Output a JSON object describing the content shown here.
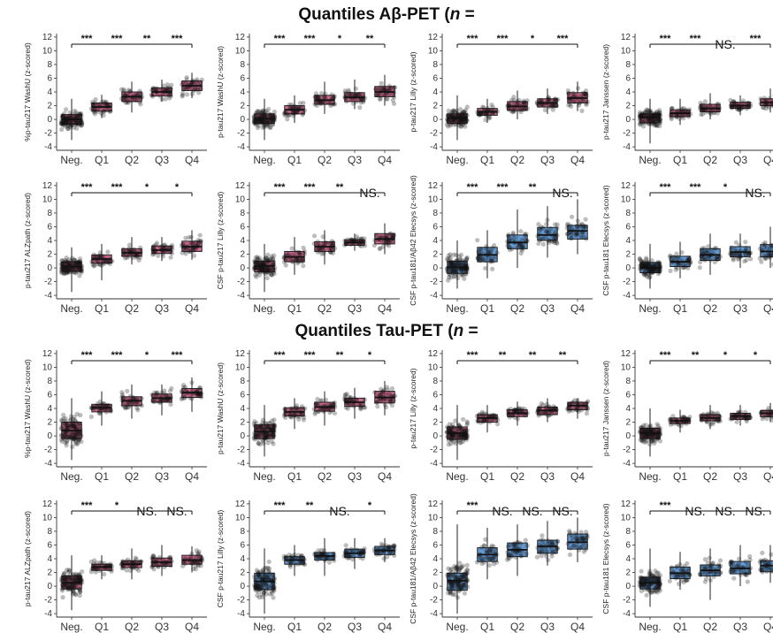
{
  "sections": [
    {
      "id": "amyloid",
      "title_prefix": "Quantiles Aβ-PET (",
      "title_n": "n",
      "title_suffix": " ="
    },
    {
      "id": "tau",
      "title_prefix": "Quantiles Tau-PET (",
      "title_n": "n",
      "title_suffix": " ="
    }
  ],
  "chart_data": [
    {
      "type": "box",
      "section": "amyloid",
      "ylabel": "%p-tau217 WashU (z-scored)",
      "categories": [
        "Neg.",
        "Q1",
        "Q2",
        "Q3",
        "Q4"
      ],
      "yticks": [
        -4,
        -2,
        0,
        2,
        4,
        6,
        8,
        10,
        12
      ],
      "ylim": [
        -4.5,
        12.5
      ],
      "fill": "#c0507a",
      "medians": [
        0.0,
        1.8,
        3.3,
        4.0,
        4.9
      ],
      "q1": [
        -0.7,
        1.2,
        2.6,
        3.4,
        4.2
      ],
      "q3": [
        0.7,
        2.4,
        4.0,
        4.6,
        5.6
      ],
      "whisker_lo": [
        -3.0,
        0.2,
        1.0,
        2.6,
        3.1
      ],
      "whisker_hi": [
        3.0,
        3.6,
        5.5,
        5.8,
        6.8
      ],
      "significance": [
        "***",
        "***",
        "**",
        "***"
      ]
    },
    {
      "type": "box",
      "section": "amyloid",
      "ylabel": "p-tau217 WashU (z-scored)",
      "categories": [
        "Neg.",
        "Q1",
        "Q2",
        "Q3",
        "Q4"
      ],
      "yticks": [
        -4,
        -2,
        0,
        2,
        4,
        6,
        8,
        10,
        12
      ],
      "ylim": [
        -4.5,
        12.5
      ],
      "fill": "#c0507a",
      "medians": [
        0.1,
        1.4,
        2.8,
        3.2,
        4.0
      ],
      "q1": [
        -0.6,
        0.8,
        2.2,
        2.6,
        3.3
      ],
      "q3": [
        0.8,
        2.0,
        3.5,
        3.9,
        4.8
      ],
      "whisker_lo": [
        -3.0,
        -0.5,
        0.8,
        1.5,
        2.0
      ],
      "whisker_hi": [
        3.0,
        3.5,
        5.5,
        5.8,
        6.5
      ],
      "significance": [
        "***",
        "***",
        "*",
        "**"
      ]
    },
    {
      "type": "box",
      "section": "amyloid",
      "ylabel": "p-tau217 Lilly (z-scored)",
      "categories": [
        "Neg.",
        "Q1",
        "Q2",
        "Q3",
        "Q4"
      ],
      "yticks": [
        -4,
        -2,
        0,
        2,
        4,
        6,
        8,
        10,
        12
      ],
      "ylim": [
        -4.5,
        12.5
      ],
      "fill": "#c0507a",
      "medians": [
        0.2,
        1.1,
        1.9,
        2.4,
        3.1
      ],
      "q1": [
        -0.6,
        0.6,
        1.3,
        1.8,
        2.4
      ],
      "q3": [
        0.8,
        1.6,
        2.6,
        3.0,
        3.9
      ],
      "whisker_lo": [
        -3.0,
        -0.5,
        0.0,
        0.8,
        1.2
      ],
      "whisker_hi": [
        3.5,
        3.0,
        4.2,
        4.5,
        5.5
      ],
      "significance": [
        "***",
        "***",
        "*",
        "***"
      ]
    },
    {
      "type": "box",
      "section": "amyloid",
      "ylabel": "p-tau217 Janssen (z-scored)",
      "categories": [
        "Neg.",
        "Q1",
        "Q2",
        "Q3",
        "Q4"
      ],
      "yticks": [
        -4,
        -2,
        0,
        2,
        4,
        6,
        8,
        10,
        12
      ],
      "ylim": [
        -4.5,
        12.5
      ],
      "fill": "#c0507a",
      "medians": [
        0.3,
        0.9,
        1.6,
        2.0,
        2.5
      ],
      "q1": [
        -0.5,
        0.4,
        1.1,
        1.6,
        2.0
      ],
      "q3": [
        0.8,
        1.4,
        2.2,
        2.5,
        3.0
      ],
      "whisker_lo": [
        -3.5,
        -0.8,
        0.0,
        0.6,
        1.0
      ],
      "whisker_hi": [
        3.0,
        3.0,
        3.8,
        3.5,
        4.5
      ],
      "significance": [
        "***",
        "***",
        "NS.",
        "***"
      ]
    },
    {
      "type": "box",
      "section": "amyloid",
      "ylabel": "p-tau217 ALZpath (z-scored)",
      "categories": [
        "Neg.",
        "Q1",
        "Q2",
        "Q3",
        "Q4"
      ],
      "yticks": [
        -4,
        -2,
        0,
        2,
        4,
        6,
        8,
        10,
        12
      ],
      "ylim": [
        -4.5,
        12.5
      ],
      "fill": "#c0507a",
      "medians": [
        0.2,
        1.3,
        2.2,
        2.6,
        3.1
      ],
      "q1": [
        -0.5,
        0.7,
        1.7,
        2.1,
        2.4
      ],
      "q3": [
        0.9,
        1.9,
        2.8,
        3.2,
        3.9
      ],
      "whisker_lo": [
        -3.5,
        -1.8,
        0.5,
        1.0,
        1.2
      ],
      "whisker_hi": [
        3.0,
        3.5,
        4.5,
        4.5,
        5.5
      ],
      "significance": [
        "***",
        "***",
        "*",
        "*"
      ]
    },
    {
      "type": "box",
      "section": "amyloid",
      "ylabel": "CSF p-tau217 Lilly (z-scored)",
      "categories": [
        "Neg.",
        "Q1",
        "Q2",
        "Q3",
        "Q4"
      ],
      "yticks": [
        -4,
        -2,
        0,
        2,
        4,
        6,
        8,
        10,
        12
      ],
      "ylim": [
        -4.5,
        12.5
      ],
      "fill": "#c0507a",
      "medians": [
        0.3,
        1.6,
        3.1,
        3.7,
        4.2
      ],
      "q1": [
        -0.6,
        0.9,
        2.4,
        3.3,
        3.5
      ],
      "q3": [
        1.0,
        2.4,
        3.8,
        4.1,
        5.0
      ],
      "whisker_lo": [
        -3.5,
        -1.0,
        0.5,
        2.5,
        2.0
      ],
      "whisker_hi": [
        3.5,
        4.5,
        5.5,
        5.0,
        6.5
      ],
      "significance": [
        "***",
        "***",
        "**",
        "NS."
      ]
    },
    {
      "type": "box",
      "section": "amyloid",
      "ylabel": "CSF p-tau181/Aβ42 Elecsys (z-scored)",
      "categories": [
        "Neg.",
        "Q1",
        "Q2",
        "Q3",
        "Q4"
      ],
      "yticks": [
        -4,
        -2,
        0,
        2,
        4,
        6,
        8,
        10,
        12
      ],
      "ylim": [
        -4.5,
        12.5
      ],
      "fill": "#4a86c5",
      "medians": [
        0.1,
        1.9,
        3.7,
        4.8,
        5.4
      ],
      "q1": [
        -0.8,
        0.9,
        2.8,
        4.0,
        4.2
      ],
      "q3": [
        1.0,
        3.0,
        4.8,
        5.9,
        6.2
      ],
      "whisker_lo": [
        -3.0,
        -1.5,
        0.0,
        1.5,
        2.0
      ],
      "whisker_hi": [
        4.0,
        5.5,
        8.5,
        9.0,
        10.0
      ],
      "significance": [
        "***",
        "***",
        "**",
        "NS."
      ]
    },
    {
      "type": "box",
      "section": "amyloid",
      "ylabel": "CSF p-tau181 Elecsys (z-scored)",
      "categories": [
        "Neg.",
        "Q1",
        "Q2",
        "Q3",
        "Q4"
      ],
      "yticks": [
        -4,
        -2,
        0,
        2,
        4,
        6,
        8,
        10,
        12
      ],
      "ylim": [
        -4.5,
        12.5
      ],
      "fill": "#4a86c5",
      "medians": [
        0.0,
        0.9,
        1.9,
        2.3,
        2.4
      ],
      "q1": [
        -0.7,
        0.2,
        1.1,
        1.6,
        1.6
      ],
      "q3": [
        0.8,
        1.7,
        2.8,
        3.1,
        3.4
      ],
      "whisker_lo": [
        -3.0,
        -1.5,
        -1.0,
        0.0,
        0.0
      ],
      "whisker_hi": [
        3.5,
        3.8,
        5.0,
        5.0,
        6.0
      ],
      "significance": [
        "***",
        "***",
        "*",
        "NS."
      ]
    },
    {
      "type": "box",
      "section": "tau",
      "ylabel": "%p-tau217 WashU (z-scored)",
      "categories": [
        "Neg.",
        "Q1",
        "Q2",
        "Q3",
        "Q4"
      ],
      "yticks": [
        -4,
        -2,
        0,
        2,
        4,
        6,
        8,
        10,
        12
      ],
      "ylim": [
        -4.5,
        12.5
      ],
      "fill": "#c0507a",
      "medians": [
        0.8,
        4.1,
        5.1,
        5.5,
        6.3
      ],
      "q1": [
        -0.4,
        3.5,
        4.4,
        4.9,
        5.6
      ],
      "q3": [
        2.0,
        4.6,
        5.7,
        6.1,
        6.9
      ],
      "whisker_lo": [
        -3.5,
        1.5,
        2.5,
        3.0,
        3.5
      ],
      "whisker_hi": [
        5.5,
        6.5,
        7.5,
        7.5,
        8.5
      ],
      "significance": [
        "***",
        "***",
        "*",
        "***"
      ]
    },
    {
      "type": "box",
      "section": "tau",
      "ylabel": "p-tau217 WashU (z-scored)",
      "categories": [
        "Neg.",
        "Q1",
        "Q2",
        "Q3",
        "Q4"
      ],
      "yticks": [
        -4,
        -2,
        0,
        2,
        4,
        6,
        8,
        10,
        12
      ],
      "ylim": [
        -4.5,
        12.5
      ],
      "fill": "#c0507a",
      "medians": [
        0.6,
        3.5,
        4.2,
        4.9,
        5.6
      ],
      "q1": [
        -0.4,
        2.9,
        3.6,
        4.3,
        4.8
      ],
      "q3": [
        1.6,
        4.1,
        4.9,
        5.5,
        6.5
      ],
      "whisker_lo": [
        -3.0,
        1.0,
        1.5,
        2.5,
        3.0
      ],
      "whisker_hi": [
        4.5,
        5.5,
        6.5,
        7.0,
        8.0
      ],
      "significance": [
        "***",
        "***",
        "**",
        "*"
      ]
    },
    {
      "type": "box",
      "section": "tau",
      "ylabel": "p-tau217 Lilly (z-scored)",
      "categories": [
        "Neg.",
        "Q1",
        "Q2",
        "Q3",
        "Q4"
      ],
      "yticks": [
        -4,
        -2,
        0,
        2,
        4,
        6,
        8,
        10,
        12
      ],
      "ylim": [
        -4.5,
        12.5
      ],
      "fill": "#c0507a",
      "medians": [
        0.4,
        2.6,
        3.3,
        3.7,
        4.4
      ],
      "q1": [
        -0.5,
        2.0,
        2.8,
        3.1,
        3.8
      ],
      "q3": [
        1.3,
        3.1,
        3.8,
        4.2,
        4.9
      ],
      "whisker_lo": [
        -3.5,
        0.5,
        1.5,
        2.0,
        2.5
      ],
      "whisker_hi": [
        4.5,
        4.5,
        5.0,
        5.5,
        5.5
      ],
      "significance": [
        "***",
        "**",
        "**",
        "**"
      ]
    },
    {
      "type": "box",
      "section": "tau",
      "ylabel": "p-tau217 Janssen (z-scored)",
      "categories": [
        "Neg.",
        "Q1",
        "Q2",
        "Q3",
        "Q4"
      ],
      "yticks": [
        -4,
        -2,
        0,
        2,
        4,
        6,
        8,
        10,
        12
      ],
      "ylim": [
        -4.5,
        12.5
      ],
      "fill": "#c0507a",
      "medians": [
        0.4,
        2.2,
        2.6,
        2.9,
        3.3
      ],
      "q1": [
        -0.4,
        1.8,
        2.2,
        2.4,
        2.8
      ],
      "q3": [
        1.1,
        2.6,
        3.1,
        3.3,
        3.7
      ],
      "whisker_lo": [
        -3.0,
        0.5,
        1.0,
        1.5,
        2.0
      ],
      "whisker_hi": [
        4.0,
        3.8,
        4.5,
        4.5,
        4.8
      ],
      "significance": [
        "***",
        "**",
        "*",
        "*"
      ]
    },
    {
      "type": "box",
      "section": "tau",
      "ylabel": "p-tau217 ALZpath (z-scored)",
      "categories": [
        "Neg.",
        "Q1",
        "Q2",
        "Q3",
        "Q4"
      ],
      "yticks": [
        -4,
        -2,
        0,
        2,
        4,
        6,
        8,
        10,
        12
      ],
      "ylim": [
        -4.5,
        12.5
      ],
      "fill": "#c0507a",
      "medians": [
        0.5,
        2.8,
        3.2,
        3.5,
        3.8
      ],
      "q1": [
        -0.4,
        2.3,
        2.7,
        2.9,
        3.2
      ],
      "q3": [
        1.5,
        3.2,
        3.7,
        4.1,
        4.5
      ],
      "whisker_lo": [
        -3.5,
        1.0,
        1.0,
        1.5,
        2.0
      ],
      "whisker_hi": [
        4.5,
        4.5,
        5.5,
        6.0,
        5.8
      ],
      "significance": [
        "***",
        "*",
        "NS.",
        "NS."
      ]
    },
    {
      "type": "box",
      "section": "tau",
      "ylabel": "CSF p-tau217 Lilly (z-scored)",
      "categories": [
        "Neg.",
        "Q1",
        "Q2",
        "Q3",
        "Q4"
      ],
      "yticks": [
        -4,
        -2,
        0,
        2,
        4,
        6,
        8,
        10,
        12
      ],
      "ylim": [
        -4.5,
        12.5
      ],
      "fill": "#4a86c5",
      "medians": [
        0.7,
        3.8,
        4.4,
        4.8,
        5.2
      ],
      "q1": [
        -0.5,
        3.2,
        3.8,
        4.2,
        4.6
      ],
      "q3": [
        1.9,
        4.3,
        4.9,
        5.4,
        5.8
      ],
      "whisker_lo": [
        -4.0,
        1.5,
        1.5,
        2.5,
        3.5
      ],
      "whisker_hi": [
        5.5,
        6.0,
        7.0,
        7.0,
        7.0
      ],
      "significance": [
        "***",
        "**",
        "NS.",
        "*"
      ]
    },
    {
      "type": "box",
      "section": "tau",
      "ylabel": "CSF p-tau181/Aβ42 Elecsys (z-scored)",
      "categories": [
        "Neg.",
        "Q1",
        "Q2",
        "Q3",
        "Q4"
      ],
      "yticks": [
        -4,
        -2,
        0,
        2,
        4,
        6,
        8,
        10,
        12
      ],
      "ylim": [
        -4.5,
        12.5
      ],
      "fill": "#4a86c5",
      "medians": [
        0.8,
        4.6,
        5.3,
        5.8,
        6.4
      ],
      "q1": [
        -0.6,
        3.6,
        4.3,
        4.8,
        5.4
      ],
      "q3": [
        1.9,
        5.6,
        6.3,
        6.7,
        7.6
      ],
      "whisker_lo": [
        -4.0,
        1.0,
        1.5,
        3.0,
        3.5
      ],
      "whisker_hi": [
        9.0,
        8.5,
        9.0,
        9.5,
        10.0
      ],
      "significance": [
        "***",
        "NS.",
        "NS.",
        "NS."
      ]
    },
    {
      "type": "box",
      "section": "tau",
      "ylabel": "CSF p-tau181 Elecsys (z-scored)",
      "categories": [
        "Neg.",
        "Q1",
        "Q2",
        "Q3",
        "Q4"
      ],
      "yticks": [
        -4,
        -2,
        0,
        2,
        4,
        6,
        8,
        10,
        12
      ],
      "ylim": [
        -4.5,
        12.5
      ],
      "fill": "#4a86c5",
      "medians": [
        0.5,
        1.9,
        2.3,
        2.6,
        3.0
      ],
      "q1": [
        -0.4,
        1.1,
        1.5,
        1.8,
        2.1
      ],
      "q3": [
        1.3,
        2.8,
        3.1,
        3.6,
        3.7
      ],
      "whisker_lo": [
        -3.0,
        -0.5,
        -2.0,
        0.0,
        0.5
      ],
      "whisker_hi": [
        5.5,
        5.0,
        5.5,
        6.0,
        6.0
      ],
      "significance": [
        "***",
        "NS.",
        "NS.",
        "NS."
      ]
    }
  ]
}
